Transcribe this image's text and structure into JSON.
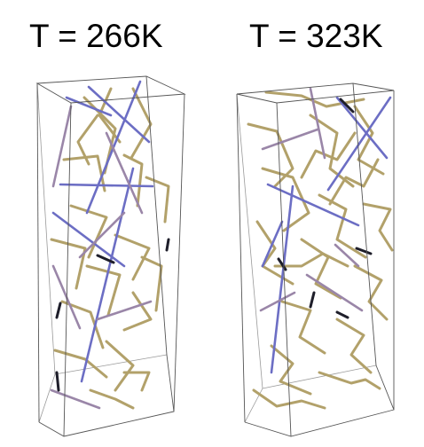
{
  "panels": [
    {
      "title": "T = 266K"
    },
    {
      "title": "T = 323K"
    }
  ],
  "colors": {
    "background": "#ffffff",
    "box_edge": "#555555",
    "rod_tan": "#b2a16a",
    "rod_tan_dark": "#8c7c48",
    "rod_blue": "#6c6ec4",
    "rod_mauve": "#9a86a8",
    "rod_dark": "#1e1e2a"
  }
}
